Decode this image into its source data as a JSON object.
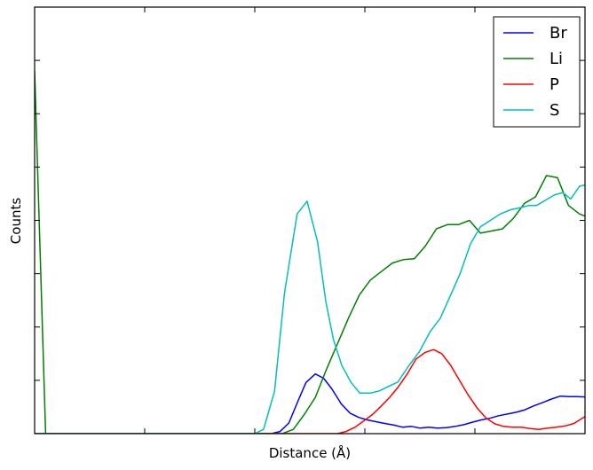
{
  "chart_data": {
    "type": "line",
    "title": "",
    "xlabel": "Distance (Å)",
    "ylabel": "Counts",
    "xlim": [
      0,
      100
    ],
    "ylim": [
      0,
      100
    ],
    "grid": false,
    "x_ticks": [
      0,
      20,
      40,
      60,
      80,
      100
    ],
    "y_ticks": [
      0,
      12.5,
      25,
      37.5,
      50,
      62.5,
      75,
      87.5,
      100
    ],
    "tick_labels_visible": false,
    "legend": {
      "position": "top-right"
    },
    "series": [
      {
        "name": "Br",
        "color": "#0000ff",
        "x": [
          0,
          43,
          44.6,
          46.2,
          47.8,
          49.3,
          51,
          52.5,
          54,
          55.7,
          57.3,
          58.9,
          60.5,
          62,
          63.6,
          65.3,
          66.9,
          68.4,
          70,
          71.6,
          73.2,
          74.8,
          76.4,
          78,
          79.6,
          81.1,
          82.7,
          84.3,
          85.9,
          87.5,
          89.1,
          90.7,
          92.3,
          93.9,
          95.5,
          97,
          98.5,
          100
        ],
        "y": [
          0,
          0,
          0.5,
          2.5,
          7.5,
          12,
          14,
          13,
          10.5,
          7,
          4.8,
          3.8,
          3.2,
          2.8,
          2.4,
          2,
          1.5,
          1.7,
          1.3,
          1.5,
          1.3,
          1.4,
          1.7,
          2.1,
          2.7,
          3.2,
          3.6,
          4.2,
          4.6,
          5,
          5.6,
          6.5,
          7.3,
          8.1,
          8.8,
          8.7,
          8.7,
          8.6
        ]
      },
      {
        "name": "Li",
        "color": "#008000",
        "x": [
          0,
          2,
          4,
          45,
          47,
          49,
          51,
          53,
          55,
          57,
          59,
          61,
          63,
          65,
          67,
          69,
          71,
          73,
          75,
          77,
          79,
          81,
          83,
          85,
          87,
          89,
          91,
          93,
          95,
          97,
          99,
          100
        ],
        "y": [
          85,
          0,
          0,
          0,
          1,
          4.5,
          8.5,
          15,
          21,
          27,
          32.5,
          36,
          38,
          40,
          40.8,
          41,
          44,
          48,
          49,
          49,
          50,
          47,
          47.5,
          48,
          50.5,
          54,
          55.5,
          60.5,
          60,
          53.5,
          51.5,
          51
        ]
      },
      {
        "name": "P",
        "color": "#ff0000",
        "x": [
          0,
          55,
          56.6,
          58.2,
          59.8,
          61.4,
          63,
          64.5,
          66.1,
          67.7,
          69.3,
          70.9,
          72.5,
          74,
          75.6,
          77.2,
          78.8,
          80.4,
          82,
          83.6,
          85.2,
          86.8,
          88.4,
          90,
          91.6,
          93.2,
          94.8,
          96.4,
          98,
          100
        ],
        "y": [
          0,
          0,
          0.5,
          1.5,
          3,
          4.5,
          6.5,
          8.5,
          11,
          14,
          17.5,
          19,
          19.7,
          18.7,
          16,
          12.5,
          9,
          6,
          3.7,
          2.3,
          1.7,
          1.5,
          1.5,
          1.2,
          1,
          1.3,
          1.5,
          1.8,
          2.4,
          4
        ]
      },
      {
        "name": "S",
        "color": "#00bfbf",
        "x": [
          0,
          40,
          41.6,
          43.6,
          45.4,
          47.7,
          49.5,
          51.4,
          52.9,
          54.3,
          55.8,
          57.5,
          59.1,
          61,
          62.6,
          64.2,
          66,
          67.8,
          69.9,
          71.9,
          73.7,
          75.7,
          77.3,
          79.2,
          81,
          82.8,
          84.6,
          86.5,
          88.3,
          89.8,
          91.2,
          93.2,
          94.5,
          96,
          97.4,
          99,
          100
        ],
        "y": [
          0,
          0,
          1,
          10,
          33,
          51.5,
          54.5,
          45,
          31,
          22,
          16,
          12,
          9.5,
          9.5,
          10,
          11,
          12.1,
          15.6,
          19.2,
          24,
          27,
          32.8,
          37.5,
          44.5,
          48.5,
          50,
          51.5,
          52.5,
          53,
          53.5,
          53.5,
          55,
          56,
          56.5,
          55,
          58,
          58.3
        ]
      }
    ]
  }
}
